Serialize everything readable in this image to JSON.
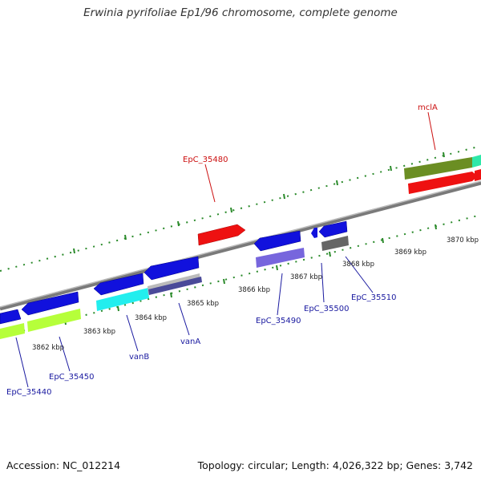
{
  "title": "Erwinia pyrifoliae Ep1/96 chromosome, complete genome",
  "footer": {
    "accession": "Accession: NC_012214",
    "stats": "Topology: circular; Length: 4,026,322 bp; Genes: 3,742"
  },
  "colors": {
    "tick": "#2a8a2a",
    "backbone": "#888888",
    "label_blue": "#1a1aa0",
    "label_red": "#cc1111"
  },
  "tick_labels": [
    "3862 kbp",
    "3863 kbp",
    "3864 kbp",
    "3865 kbp",
    "3866 kbp",
    "3867 kbp",
    "3868 kbp",
    "3869 kbp",
    "3870 kbp"
  ],
  "gene_labels": [
    {
      "id": "EpC_35440",
      "color": "blue"
    },
    {
      "id": "EpC_35450",
      "color": "blue"
    },
    {
      "id": "vanB",
      "color": "blue"
    },
    {
      "id": "vanA",
      "color": "blue"
    },
    {
      "id": "EpC_35490",
      "color": "blue"
    },
    {
      "id": "EpC_35500",
      "color": "blue"
    },
    {
      "id": "EpC_35510",
      "color": "blue"
    },
    {
      "id": "EpC_35480",
      "color": "red"
    },
    {
      "id": "mclA",
      "color": "red"
    }
  ]
}
